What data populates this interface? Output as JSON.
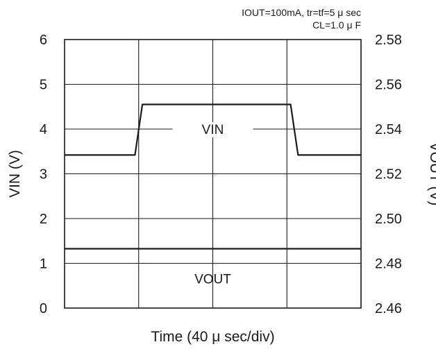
{
  "chart_data": {
    "type": "line",
    "xlabel": "Time (40 μ sec/div)",
    "ylabel_left": "VIN (V)",
    "ylabel_right": "VOUT (V)",
    "left_axis": {
      "range": [
        0,
        6
      ],
      "ticks": [
        "0",
        "1",
        "2",
        "3",
        "4",
        "5",
        "6"
      ]
    },
    "right_axis": {
      "range": [
        2.46,
        2.58
      ],
      "ticks": [
        "2.46",
        "2.48",
        "2.50",
        "2.52",
        "2.54",
        "2.56",
        "2.58"
      ]
    },
    "x_divisions": 4,
    "grid": true,
    "annotations": [
      "IOUT=100mA, tr=tf=5 μ sec",
      "CL=1.0 μ F"
    ],
    "series": [
      {
        "name": "VIN",
        "axis": "left",
        "x": [
          0,
          0.95,
          1.05,
          3.05,
          3.15,
          4
        ],
        "values": [
          3.42,
          3.42,
          4.55,
          4.55,
          3.42,
          3.42
        ]
      },
      {
        "name": "VOUT",
        "axis": "right",
        "x": [
          0,
          4
        ],
        "values": [
          2.4865,
          2.4865
        ]
      }
    ],
    "colors": {
      "lines": "#1a1a1a",
      "grid": "#1a1a1a",
      "background": "#ffffff"
    }
  }
}
